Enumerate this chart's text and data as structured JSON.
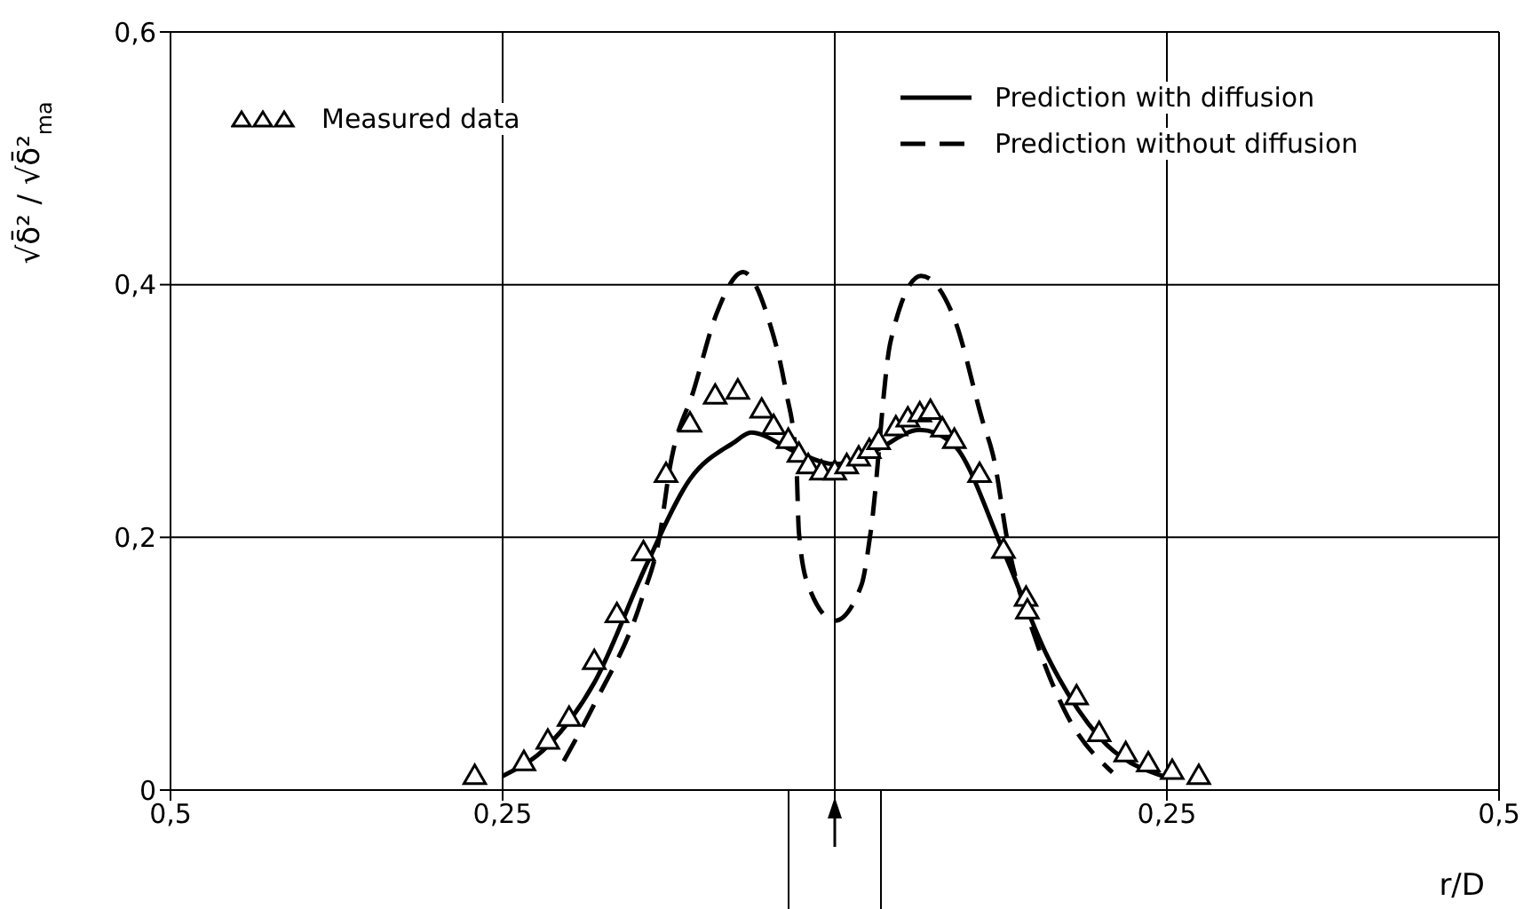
{
  "chart_data": {
    "type": "line",
    "xlabel": "r/D",
    "ylabel": "√δ̄² / √δ̄²$_{ma}$",
    "xlim": [
      -0.5,
      0.5
    ],
    "ylim": [
      0,
      0.6
    ],
    "xticks": [
      {
        "value": -0.5,
        "label": "0,5"
      },
      {
        "value": -0.25,
        "label": "0,25"
      },
      {
        "value": 0,
        "label": null
      },
      {
        "value": 0.25,
        "label": "0,25"
      },
      {
        "value": 0.5,
        "label": "0,5"
      }
    ],
    "yticks": [
      0,
      {
        "value": 0.2,
        "label": "0,2"
      },
      {
        "value": 0.4,
        "label": "0,4"
      },
      {
        "value": 0.6,
        "label": "0,6"
      }
    ],
    "grid": true,
    "legend": "top",
    "series": [
      {
        "name": "Measured data",
        "type": "scatter",
        "marker": "triangle",
        "color": "#000000",
        "x": [
          -0.271,
          -0.234,
          -0.216,
          -0.2,
          -0.181,
          -0.164,
          -0.144,
          -0.127,
          -0.109,
          -0.09,
          -0.073,
          -0.055,
          -0.046,
          -0.035,
          -0.027,
          -0.02,
          -0.01,
          0,
          0.009,
          0.018,
          0.026,
          0.033,
          0.046,
          0.055,
          0.064,
          0.072,
          0.081,
          0.09,
          0.109,
          0.127,
          0.144,
          0.145,
          0.182,
          0.199,
          0.219,
          0.236,
          0.254,
          0.274
        ],
        "values": [
          0.01,
          0.021,
          0.038,
          0.056,
          0.101,
          0.138,
          0.187,
          0.249,
          0.289,
          0.311,
          0.315,
          0.3,
          0.287,
          0.276,
          0.265,
          0.256,
          0.251,
          0.251,
          0.256,
          0.262,
          0.268,
          0.275,
          0.286,
          0.293,
          0.297,
          0.299,
          0.285,
          0.276,
          0.249,
          0.189,
          0.151,
          0.141,
          0.073,
          0.044,
          0.028,
          0.02,
          0.014,
          0.01
        ]
      },
      {
        "name": "Prediction with diffusion",
        "line_style": "solid",
        "marker": "none",
        "color": "#000000",
        "x": [
          -0.25,
          -0.216,
          -0.181,
          -0.141,
          -0.109,
          -0.076,
          -0.063,
          -0.03,
          0,
          0.029,
          0.064,
          0.088,
          0.127,
          0.16,
          0.199,
          0.25
        ],
        "values": [
          0.011,
          0.035,
          0.085,
          0.18,
          0.246,
          0.275,
          0.283,
          0.268,
          0.258,
          0.268,
          0.285,
          0.275,
          0.189,
          0.106,
          0.042,
          0.01
        ]
      },
      {
        "name": "Prediction without diffusion",
        "line_style": "dashed",
        "marker": "none",
        "color": "#000000",
        "x": [
          -0.204,
          -0.181,
          -0.145,
          -0.132,
          -0.124,
          -0.106,
          -0.089,
          -0.069,
          -0.05,
          -0.037,
          -0.029,
          -0.027,
          -0.02,
          0,
          0.02,
          0.027,
          0.042,
          0.065,
          0.09,
          0.111,
          0.12,
          0.13,
          0.151,
          0.173,
          0.209
        ],
        "values": [
          0.023,
          0.068,
          0.152,
          0.2,
          0.256,
          0.317,
          0.377,
          0.41,
          0.373,
          0.317,
          0.261,
          0.204,
          0.162,
          0.134,
          0.162,
          0.204,
          0.355,
          0.407,
          0.373,
          0.293,
          0.261,
          0.197,
          0.12,
          0.063,
          0.014
        ]
      }
    ]
  }
}
